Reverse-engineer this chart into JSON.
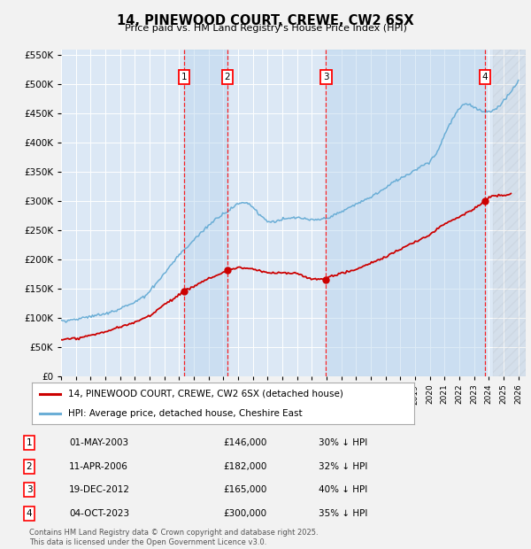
{
  "title": "14, PINEWOOD COURT, CREWE, CW2 6SX",
  "subtitle": "Price paid vs. HM Land Registry's House Price Index (HPI)",
  "hpi_color": "#6baed6",
  "price_color": "#cc0000",
  "background_plot": "#dce8f5",
  "background_fig": "#f2f2f2",
  "ylim": [
    0,
    560000
  ],
  "yticks": [
    0,
    50000,
    100000,
    150000,
    200000,
    250000,
    300000,
    350000,
    400000,
    450000,
    500000,
    550000
  ],
  "xlim_start": 1995.0,
  "xlim_end": 2026.5,
  "transactions": [
    {
      "num": 1,
      "date": "01-MAY-2003",
      "price": 146000,
      "pct": "30%",
      "x_year": 2003.33
    },
    {
      "num": 2,
      "date": "11-APR-2006",
      "price": 182000,
      "pct": "32%",
      "x_year": 2006.28
    },
    {
      "num": 3,
      "date": "19-DEC-2012",
      "price": 165000,
      "pct": "40%",
      "x_year": 2012.97
    },
    {
      "num": 4,
      "date": "04-OCT-2023",
      "price": 300000,
      "pct": "35%",
      "x_year": 2023.75
    }
  ],
  "legend_label_price": "14, PINEWOOD COURT, CREWE, CW2 6SX (detached house)",
  "legend_label_hpi": "HPI: Average price, detached house, Cheshire East",
  "footer": "Contains HM Land Registry data © Crown copyright and database right 2025.\nThis data is licensed under the Open Government Licence v3.0.",
  "hpi_control_x": [
    1995.0,
    1996,
    1997,
    1998,
    1999,
    2000,
    2001,
    2002,
    2003,
    2004,
    2005,
    2006,
    2007,
    2007.5,
    2008,
    2008.5,
    2009,
    2009.5,
    2010,
    2011,
    2012,
    2013,
    2014,
    2015,
    2016,
    2017,
    2018,
    2019,
    2020,
    2020.5,
    2021,
    2021.5,
    2022,
    2022.5,
    2023,
    2023.5,
    2024,
    2024.5,
    2025,
    2026.0
  ],
  "hpi_control_y": [
    92000,
    95000,
    100000,
    107000,
    115000,
    125000,
    145000,
    175000,
    205000,
    230000,
    255000,
    275000,
    295000,
    300000,
    290000,
    275000,
    265000,
    265000,
    268000,
    272000,
    268000,
    272000,
    282000,
    295000,
    308000,
    322000,
    340000,
    355000,
    368000,
    385000,
    415000,
    440000,
    460000,
    470000,
    465000,
    458000,
    455000,
    462000,
    475000,
    510000
  ],
  "price_control_x": [
    1995.0,
    1996,
    1997,
    1998,
    1999,
    2000,
    2001,
    2002,
    2003.33,
    2004,
    2005,
    2006.28,
    2007,
    2008,
    2009,
    2010,
    2011,
    2012,
    2012.97,
    2013,
    2014,
    2015,
    2016,
    2017,
    2018,
    2019,
    2020,
    2021,
    2022,
    2023,
    2023.75,
    2024,
    2025,
    2025.5
  ],
  "price_control_y": [
    62000,
    65000,
    70000,
    77000,
    85000,
    93000,
    105000,
    125000,
    146000,
    155000,
    168000,
    182000,
    188000,
    185000,
    178000,
    178000,
    177000,
    167000,
    165000,
    170000,
    175000,
    182000,
    192000,
    202000,
    215000,
    228000,
    240000,
    258000,
    272000,
    285000,
    300000,
    305000,
    310000,
    312000
  ]
}
